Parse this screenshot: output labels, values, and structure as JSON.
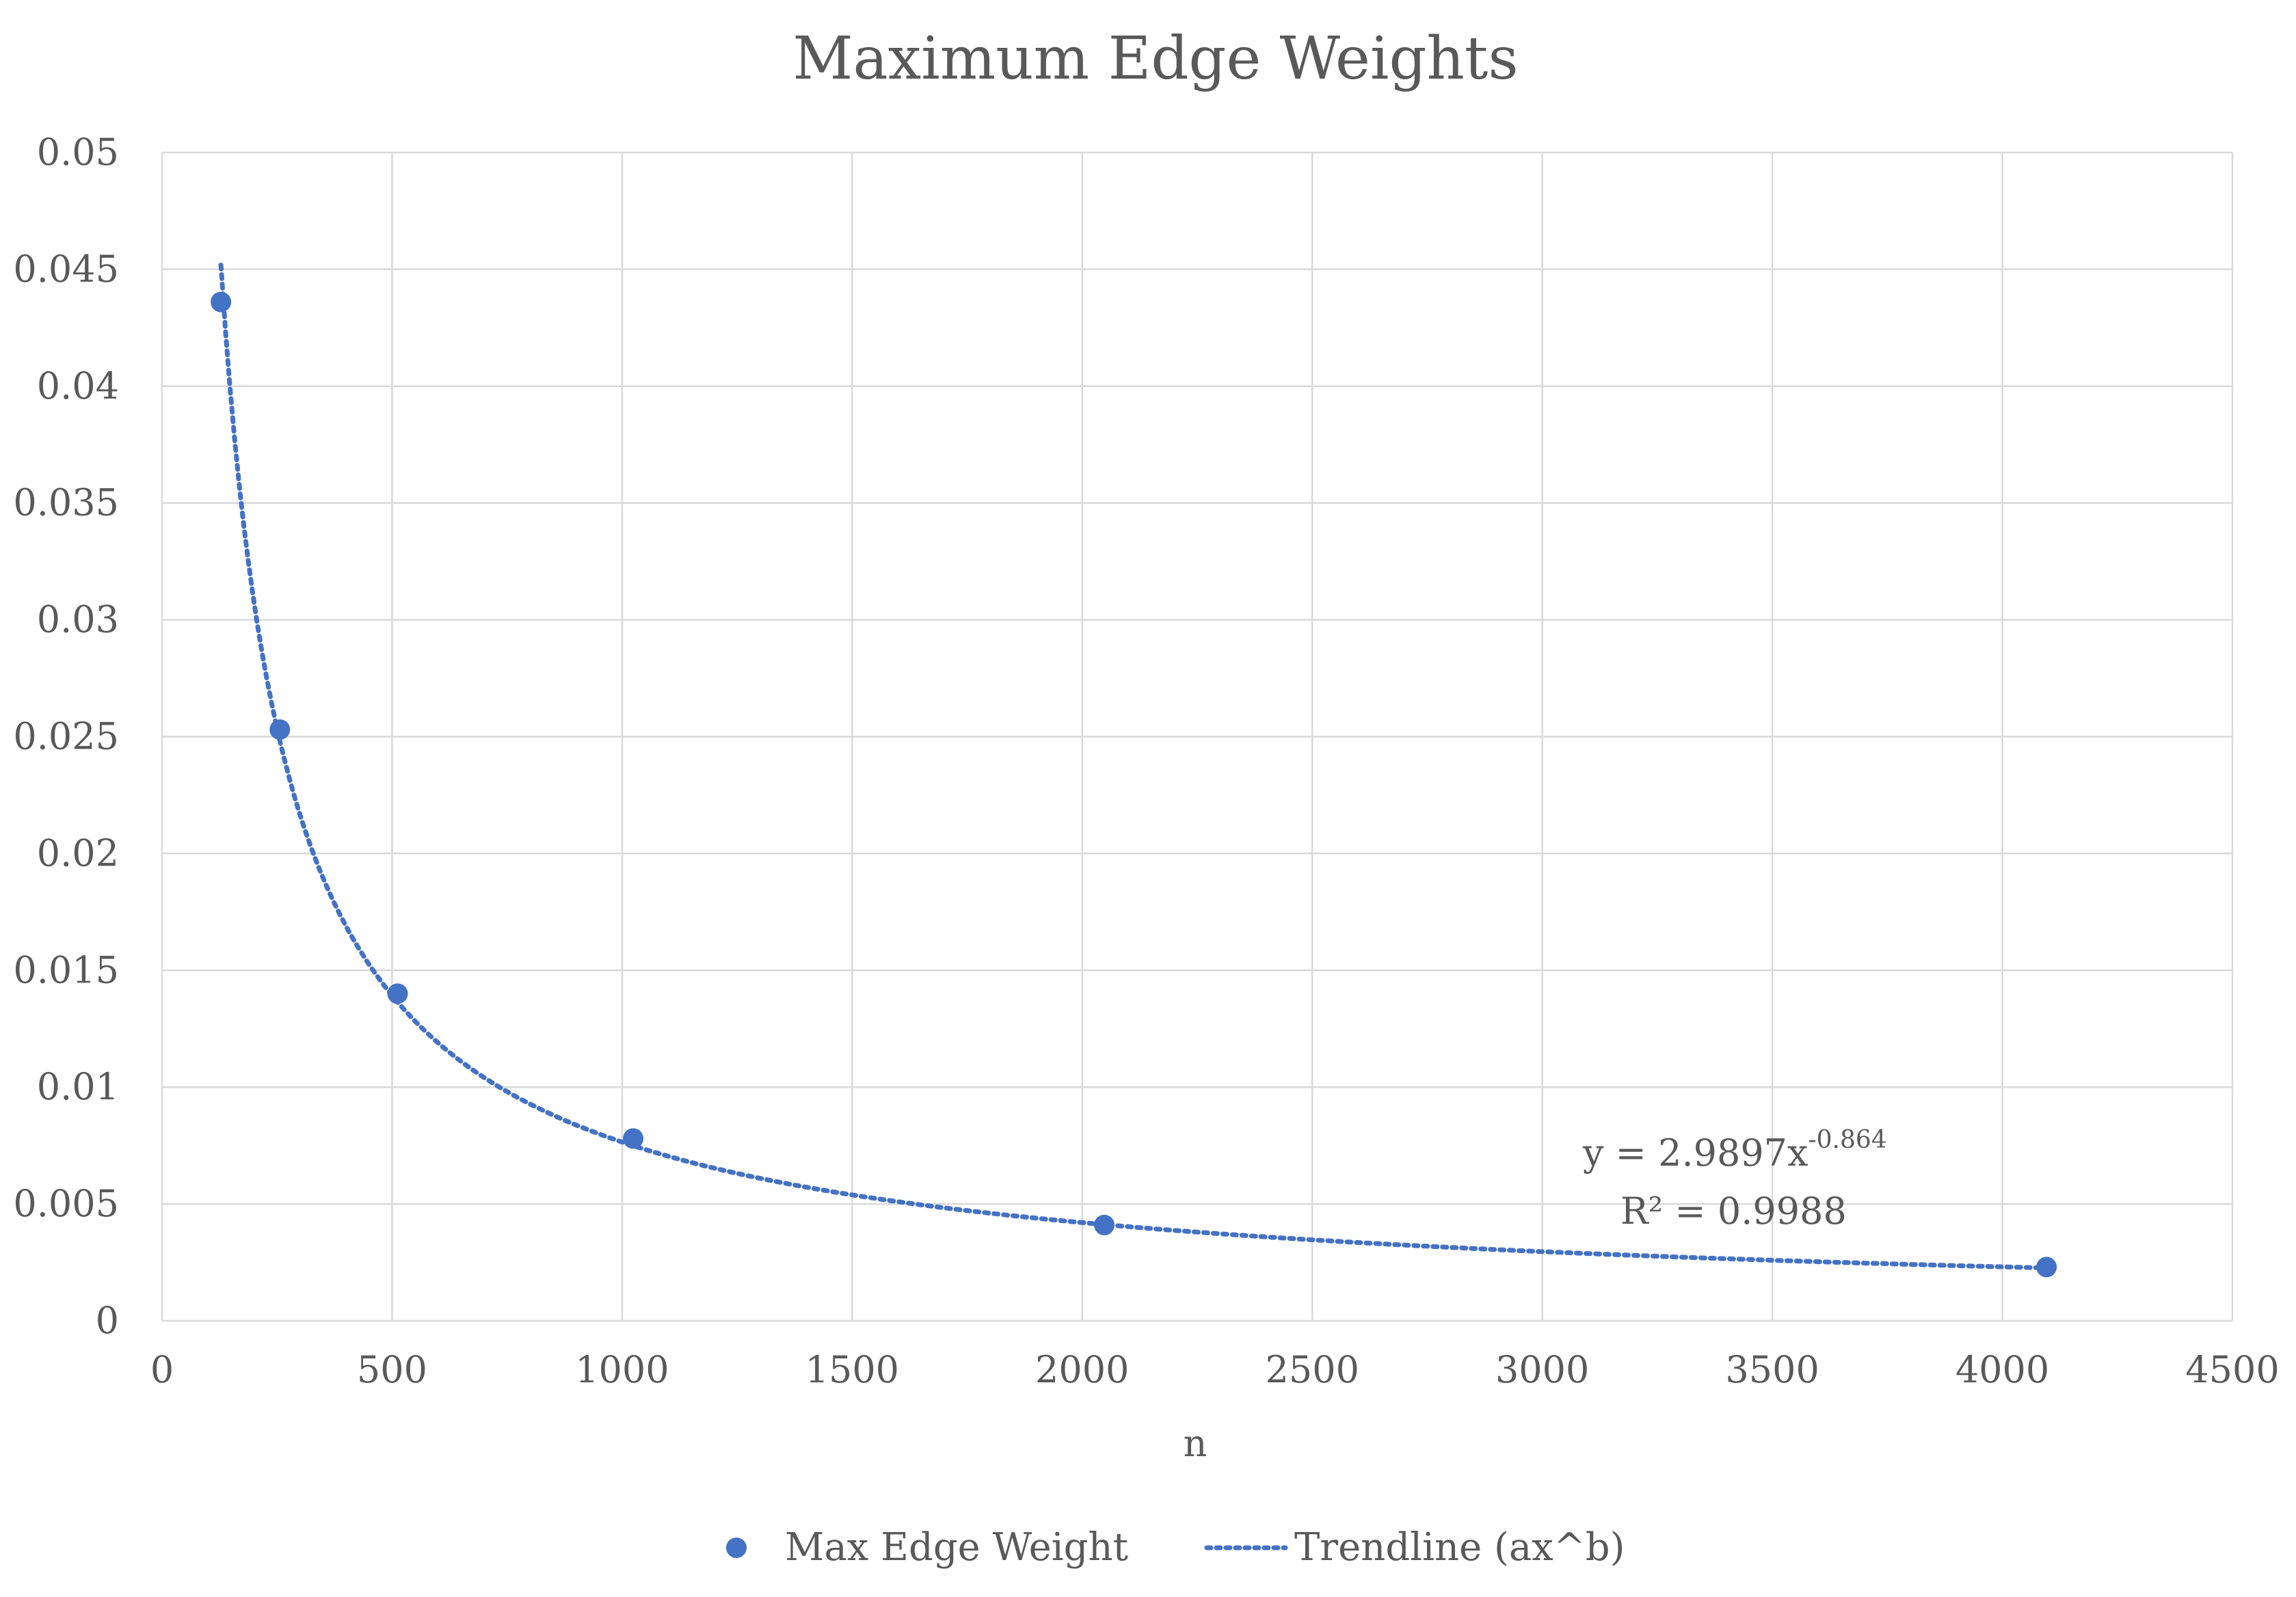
{
  "chart_data": {
    "type": "scatter",
    "title": "Maximum Edge Weights",
    "xlabel": "n",
    "ylabel": "",
    "xlim": [
      0,
      4500
    ],
    "ylim": [
      0,
      0.05
    ],
    "x_ticks": [
      "0",
      "500",
      "1000",
      "1500",
      "2000",
      "2500",
      "3000",
      "3500",
      "4000",
      "4500"
    ],
    "y_ticks": [
      "0",
      "0.005",
      "0.01",
      "0.015",
      "0.02",
      "0.025",
      "0.03",
      "0.035",
      "0.04",
      "0.045",
      "0.05"
    ],
    "grid": true,
    "legend_position": "bottom",
    "series": [
      {
        "name": "Max Edge Weight",
        "kind": "scatter",
        "color": "#4472c4",
        "points": [
          {
            "x": 128,
            "y": 0.0436
          },
          {
            "x": 256,
            "y": 0.0253
          },
          {
            "x": 512,
            "y": 0.014
          },
          {
            "x": 1024,
            "y": 0.0078
          },
          {
            "x": 2048,
            "y": 0.0041
          },
          {
            "x": 4096,
            "y": 0.0023
          }
        ]
      },
      {
        "name": "Trendline (ax^b)",
        "kind": "trendline",
        "color": "#4472c4",
        "a": 2.9897,
        "b": -0.864,
        "x_range": [
          128,
          4096
        ]
      }
    ],
    "annotation": {
      "equation_prefix": "y = 2.9897x",
      "equation_exponent": "-0.864",
      "r_squared": "R² = 0.9988"
    }
  }
}
